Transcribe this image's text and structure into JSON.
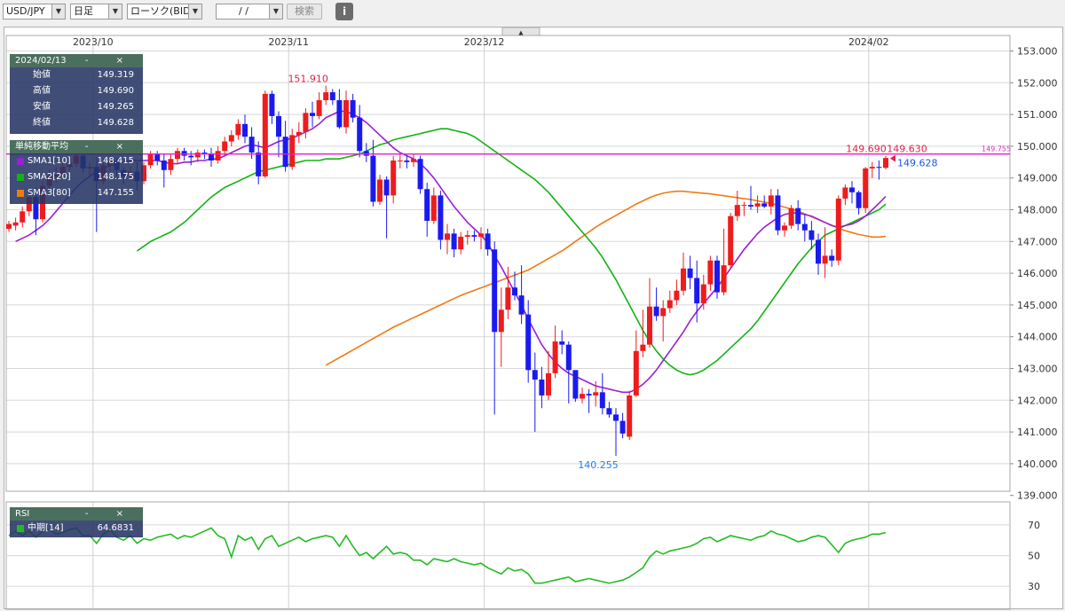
{
  "toolbar": {
    "symbol": "USD/JPY",
    "timeframe": "日足",
    "chart_type": "ローソク(BID)",
    "date_value": "/ /",
    "search_label": "検索",
    "info_label": "i"
  },
  "collapse_arrow": "▲",
  "ohlc_panel": {
    "date": "2024/02/13",
    "controls": "- ×",
    "rows": [
      {
        "label": "始値",
        "value": "149.319"
      },
      {
        "label": "高値",
        "value": "149.690"
      },
      {
        "label": "安値",
        "value": "149.265"
      },
      {
        "label": "終値",
        "value": "149.628"
      }
    ]
  },
  "sma_panel": {
    "title": "単純移動平均",
    "controls": "- ×",
    "rows": [
      {
        "label": "SMA1[10]",
        "value": "148.415",
        "color": "#9b1fd6"
      },
      {
        "label": "SMA2[20]",
        "value": "148.175",
        "color": "#12b312"
      },
      {
        "label": "SMA3[80]",
        "value": "147.155",
        "color": "#f07a12"
      }
    ]
  },
  "rsi_panel": {
    "title": "RSI",
    "controls": "- ×",
    "rows": [
      {
        "label": "中期[14]",
        "value": "64.6831",
        "color": "#22bb22"
      }
    ]
  },
  "colors": {
    "up": "#ee1c1c",
    "down": "#1a1af0",
    "sma1": "#9b1fd6",
    "sma2": "#12b312",
    "sma3": "#f07a12",
    "rsi": "#22bb22",
    "price_line": "#e61ec8",
    "grid": "#d8d8d8"
  },
  "chart_data": {
    "type": "candlestick",
    "xlabels": [
      {
        "label": "2023/10",
        "index": 13
      },
      {
        "label": "2023/11",
        "index": 42
      },
      {
        "label": "2023/12",
        "index": 71
      },
      {
        "label": "2024/02",
        "index": 128
      }
    ],
    "ylim": [
      139.5,
      153.0
    ],
    "yticks": [
      "153.000",
      "152.000",
      "151.000",
      "150.000",
      "149.000",
      "148.000",
      "147.000",
      "146.000",
      "145.000",
      "144.000",
      "143.000",
      "142.000",
      "141.000",
      "140.000",
      "139.000"
    ],
    "candles": [
      [
        147.4,
        147.65,
        147.3,
        147.55
      ],
      [
        147.5,
        147.75,
        147.35,
        147.6
      ],
      [
        147.6,
        148.1,
        147.45,
        147.95
      ],
      [
        147.95,
        148.55,
        147.8,
        148.4
      ],
      [
        148.4,
        148.7,
        147.2,
        147.7
      ],
      [
        147.7,
        148.9,
        147.6,
        148.75
      ],
      [
        148.75,
        149.25,
        148.6,
        149.05
      ],
      [
        149.05,
        149.35,
        148.85,
        149.1
      ],
      [
        149.1,
        149.5,
        149.0,
        149.35
      ],
      [
        149.35,
        149.6,
        149.2,
        149.45
      ],
      [
        149.45,
        149.85,
        149.35,
        149.7
      ],
      [
        149.7,
        149.8,
        149.15,
        149.3
      ],
      [
        149.3,
        149.5,
        149.05,
        149.35
      ],
      [
        149.35,
        149.65,
        147.3,
        148.9
      ],
      [
        148.9,
        149.6,
        148.8,
        149.4
      ],
      [
        149.4,
        149.75,
        149.2,
        149.55
      ],
      [
        149.55,
        149.65,
        149.05,
        149.25
      ],
      [
        149.25,
        149.35,
        148.8,
        149.05
      ],
      [
        149.05,
        149.35,
        148.9,
        149.2
      ],
      [
        149.2,
        149.5,
        148.6,
        148.9
      ],
      [
        148.9,
        149.5,
        148.8,
        149.4
      ],
      [
        149.4,
        149.85,
        149.3,
        149.75
      ],
      [
        149.75,
        149.85,
        149.4,
        149.55
      ],
      [
        149.55,
        149.75,
        148.7,
        149.25
      ],
      [
        149.25,
        149.75,
        149.1,
        149.6
      ],
      [
        149.6,
        149.95,
        149.45,
        149.85
      ],
      [
        149.85,
        149.95,
        149.55,
        149.7
      ],
      [
        149.7,
        149.85,
        149.4,
        149.65
      ],
      [
        149.65,
        149.9,
        149.5,
        149.8
      ],
      [
        149.8,
        149.9,
        149.6,
        149.75
      ],
      [
        149.75,
        149.95,
        149.35,
        149.55
      ],
      [
        149.55,
        150.0,
        149.45,
        149.85
      ],
      [
        149.85,
        150.3,
        149.7,
        150.15
      ],
      [
        150.15,
        150.5,
        150.0,
        150.35
      ],
      [
        150.35,
        150.85,
        150.2,
        150.7
      ],
      [
        150.7,
        151.0,
        150.1,
        150.3
      ],
      [
        150.3,
        150.6,
        149.6,
        149.8
      ],
      [
        149.8,
        150.15,
        148.8,
        149.05
      ],
      [
        149.05,
        151.75,
        149.0,
        151.65
      ],
      [
        151.65,
        151.75,
        150.7,
        150.95
      ],
      [
        150.95,
        151.1,
        149.65,
        150.3
      ],
      [
        150.3,
        150.8,
        149.2,
        149.35
      ],
      [
        149.35,
        150.55,
        149.25,
        150.35
      ],
      [
        150.35,
        150.75,
        150.1,
        150.45
      ],
      [
        150.45,
        151.2,
        150.25,
        151.05
      ],
      [
        151.05,
        151.4,
        150.6,
        150.95
      ],
      [
        150.95,
        151.7,
        150.85,
        151.45
      ],
      [
        151.45,
        151.91,
        151.3,
        151.7
      ],
      [
        151.7,
        151.8,
        151.3,
        151.45
      ],
      [
        151.45,
        151.8,
        150.55,
        150.6
      ],
      [
        150.6,
        151.75,
        150.4,
        151.45
      ],
      [
        151.45,
        151.65,
        150.75,
        150.9
      ],
      [
        150.9,
        151.3,
        149.65,
        149.85
      ],
      [
        149.85,
        150.1,
        149.5,
        149.7
      ],
      [
        149.7,
        150.2,
        148.1,
        148.25
      ],
      [
        148.25,
        149.1,
        148.15,
        148.95
      ],
      [
        148.95,
        149.05,
        147.1,
        148.45
      ],
      [
        148.45,
        149.7,
        148.2,
        149.55
      ],
      [
        149.55,
        149.75,
        149.3,
        149.55
      ],
      [
        149.55,
        149.7,
        149.3,
        149.5
      ],
      [
        149.5,
        149.75,
        149.35,
        149.6
      ],
      [
        149.6,
        149.7,
        148.5,
        148.65
      ],
      [
        148.65,
        148.85,
        147.15,
        147.65
      ],
      [
        147.65,
        148.7,
        147.55,
        148.45
      ],
      [
        148.45,
        148.6,
        146.75,
        147.05
      ],
      [
        147.05,
        147.55,
        146.6,
        147.25
      ],
      [
        147.25,
        147.4,
        146.5,
        146.75
      ],
      [
        146.75,
        147.3,
        146.6,
        147.15
      ],
      [
        147.15,
        147.35,
        146.9,
        147.2
      ],
      [
        147.2,
        147.35,
        147.0,
        147.15
      ],
      [
        147.15,
        147.45,
        146.75,
        147.25
      ],
      [
        147.25,
        147.4,
        146.55,
        146.75
      ],
      [
        146.75,
        147.0,
        141.55,
        144.15
      ],
      [
        144.15,
        145.55,
        143.05,
        144.85
      ],
      [
        144.85,
        146.2,
        144.55,
        145.55
      ],
      [
        145.55,
        146.05,
        145.15,
        145.3
      ],
      [
        145.3,
        146.25,
        144.4,
        144.7
      ],
      [
        144.7,
        145.15,
        142.55,
        142.95
      ],
      [
        142.95,
        143.5,
        141.0,
        142.65
      ],
      [
        142.65,
        143.05,
        141.75,
        142.15
      ],
      [
        142.15,
        143.55,
        142.0,
        142.85
      ],
      [
        142.85,
        144.35,
        142.7,
        143.85
      ],
      [
        143.85,
        144.2,
        143.45,
        143.75
      ],
      [
        143.75,
        143.85,
        141.9,
        142.95
      ],
      [
        142.95,
        142.9,
        141.95,
        142.05
      ],
      [
        142.05,
        142.4,
        141.9,
        142.2
      ],
      [
        142.2,
        142.35,
        141.6,
        142.15
      ],
      [
        142.15,
        142.6,
        141.8,
        142.25
      ],
      [
        142.25,
        142.85,
        141.55,
        141.75
      ],
      [
        141.75,
        141.95,
        141.45,
        141.55
      ],
      [
        141.55,
        141.75,
        140.25,
        141.35
      ],
      [
        141.35,
        141.6,
        140.8,
        140.95
      ],
      [
        140.85,
        142.3,
        140.75,
        142.15
      ],
      [
        142.15,
        144.2,
        142.1,
        143.55
      ],
      [
        143.55,
        144.85,
        143.35,
        143.75
      ],
      [
        143.75,
        145.85,
        143.65,
        144.95
      ],
      [
        144.95,
        145.55,
        144.5,
        144.65
      ],
      [
        144.65,
        145.15,
        143.85,
        144.9
      ],
      [
        144.9,
        145.45,
        144.75,
        145.15
      ],
      [
        145.15,
        145.8,
        145.0,
        145.45
      ],
      [
        145.45,
        146.65,
        145.3,
        146.15
      ],
      [
        146.15,
        146.55,
        145.5,
        145.85
      ],
      [
        145.85,
        146.4,
        144.45,
        145.05
      ],
      [
        145.05,
        145.95,
        144.85,
        145.65
      ],
      [
        145.65,
        146.55,
        145.45,
        146.4
      ],
      [
        146.4,
        146.55,
        145.2,
        145.4
      ],
      [
        145.4,
        147.4,
        145.3,
        146.25
      ],
      [
        146.25,
        147.9,
        146.15,
        147.8
      ],
      [
        147.8,
        148.6,
        147.65,
        148.15
      ],
      [
        148.15,
        148.25,
        147.8,
        148.15
      ],
      [
        148.15,
        148.75,
        148.0,
        148.1
      ],
      [
        148.1,
        148.45,
        147.9,
        148.2
      ],
      [
        148.2,
        148.45,
        148.05,
        148.1
      ],
      [
        148.1,
        148.65,
        147.85,
        148.45
      ],
      [
        148.45,
        148.65,
        147.2,
        147.35
      ],
      [
        147.35,
        147.6,
        147.15,
        147.5
      ],
      [
        147.5,
        148.15,
        147.4,
        148.05
      ],
      [
        148.05,
        148.3,
        147.35,
        147.55
      ],
      [
        147.55,
        147.85,
        147.0,
        147.35
      ],
      [
        147.35,
        147.65,
        146.75,
        147.05
      ],
      [
        147.05,
        147.25,
        145.95,
        146.3
      ],
      [
        146.3,
        147.45,
        145.85,
        146.55
      ],
      [
        146.55,
        146.75,
        146.2,
        146.4
      ],
      [
        146.4,
        148.45,
        146.25,
        148.35
      ],
      [
        148.35,
        148.8,
        148.15,
        148.7
      ],
      [
        148.7,
        148.9,
        148.2,
        148.55
      ],
      [
        148.55,
        148.6,
        147.85,
        148.05
      ],
      [
        148.05,
        149.35,
        147.9,
        149.3
      ],
      [
        149.3,
        149.5,
        149.0,
        149.35
      ],
      [
        149.35,
        149.55,
        148.95,
        149.32
      ],
      [
        149.32,
        149.69,
        149.27,
        149.63
      ]
    ],
    "sma1": [
      147.0,
      147.1,
      147.2,
      147.35,
      147.5,
      147.7,
      147.95,
      148.2,
      148.45,
      148.7,
      148.9,
      149.05,
      149.2,
      149.3,
      149.4,
      149.45,
      149.5,
      149.55,
      149.55,
      149.55,
      149.55,
      149.55,
      149.5,
      149.45,
      149.45,
      149.5,
      149.5,
      149.55,
      149.55,
      149.6,
      149.6,
      149.7,
      149.8,
      149.9,
      150.0,
      150.05,
      150.0,
      149.95,
      150.05,
      150.15,
      150.2,
      150.25,
      150.35,
      150.45,
      150.55,
      150.7,
      150.9,
      151.0,
      151.1,
      151.1,
      151.0,
      150.9,
      150.75,
      150.55,
      150.35,
      150.15,
      149.95,
      149.8,
      149.7,
      149.6,
      149.45,
      149.25,
      149.0,
      148.7,
      148.4,
      148.1,
      147.85,
      147.6,
      147.4,
      147.2,
      146.95,
      146.55,
      146.2,
      145.8,
      145.4,
      145.0,
      144.55,
      144.15,
      143.75,
      143.45,
      143.2,
      143.0,
      142.85,
      142.75,
      142.65,
      142.55,
      142.45,
      142.4,
      142.35,
      142.3,
      142.25,
      142.25,
      142.35,
      142.5,
      142.7,
      142.95,
      143.25,
      143.55,
      143.85,
      144.15,
      144.5,
      144.8,
      145.05,
      145.3,
      145.55,
      145.85,
      146.15,
      146.45,
      146.75,
      147.0,
      147.25,
      147.45,
      147.6,
      147.75,
      147.85,
      147.9,
      147.9,
      147.85,
      147.8,
      147.7,
      147.6,
      147.5,
      147.45,
      147.5,
      147.55,
      147.65,
      147.8,
      148.0,
      148.2,
      148.42
    ],
    "sma2": [
      146.7,
      146.85,
      147.0,
      147.1,
      147.2,
      147.3,
      147.45,
      147.6,
      147.8,
      148.0,
      148.2,
      148.4,
      148.55,
      148.7,
      148.8,
      148.9,
      149.0,
      149.1,
      149.2,
      149.25,
      149.3,
      149.35,
      149.4,
      149.45,
      149.5,
      149.55,
      149.55,
      149.55,
      149.6,
      149.6,
      149.6,
      149.65,
      149.7,
      149.75,
      149.85,
      149.95,
      150.05,
      150.1,
      150.2,
      150.25,
      150.3,
      150.35,
      150.4,
      150.45,
      150.5,
      150.55,
      150.55,
      150.5,
      150.45,
      150.4,
      150.3,
      150.15,
      150.0,
      149.85,
      149.7,
      149.55,
      149.4,
      149.25,
      149.1,
      148.95,
      148.75,
      148.55,
      148.3,
      148.05,
      147.8,
      147.55,
      147.3,
      147.05,
      146.8,
      146.5,
      146.15,
      145.8,
      145.4,
      145.0,
      144.6,
      144.2,
      143.85,
      143.55,
      143.3,
      143.1,
      142.95,
      142.85,
      142.8,
      142.85,
      142.95,
      143.1,
      143.25,
      143.45,
      143.65,
      143.85,
      144.05,
      144.25,
      144.5,
      144.8,
      145.1,
      145.4,
      145.7,
      146.0,
      146.3,
      146.55,
      146.8,
      147.0,
      147.2,
      147.3,
      147.4,
      147.5,
      147.6,
      147.7,
      147.8,
      147.9,
      148.0,
      148.18
    ],
    "sma3": [
      143.1,
      143.22,
      143.34,
      143.46,
      143.58,
      143.7,
      143.82,
      143.94,
      144.06,
      144.18,
      144.3,
      144.4,
      144.5,
      144.6,
      144.7,
      144.8,
      144.9,
      145.0,
      145.1,
      145.2,
      145.3,
      145.38,
      145.46,
      145.54,
      145.62,
      145.7,
      145.78,
      145.86,
      145.94,
      146.02,
      146.1,
      146.22,
      146.34,
      146.46,
      146.58,
      146.7,
      146.85,
      147.0,
      147.15,
      147.3,
      147.45,
      147.58,
      147.7,
      147.82,
      147.94,
      148.06,
      148.18,
      148.28,
      148.38,
      148.46,
      148.52,
      148.56,
      148.58,
      148.58,
      148.56,
      148.54,
      148.52,
      148.5,
      148.47,
      148.44,
      148.41,
      148.38,
      148.35,
      148.32,
      148.28,
      148.24,
      148.2,
      148.14,
      148.08,
      148.02,
      147.95,
      147.87,
      147.78,
      147.69,
      147.6,
      147.51,
      147.42,
      147.34,
      147.28,
      147.22,
      147.18,
      147.14,
      147.14,
      147.16
    ],
    "rsi": {
      "ylim": [
        15,
        85
      ],
      "yticks": [
        "70",
        "50",
        "30"
      ],
      "values": [
        63,
        66,
        63,
        66,
        62,
        66,
        67,
        64,
        65,
        67,
        68,
        63,
        63,
        58,
        64,
        67,
        62,
        60,
        63,
        58,
        61,
        60,
        62,
        63,
        64,
        61,
        63,
        62,
        64,
        66,
        68,
        63,
        61,
        49,
        63,
        60,
        62,
        54,
        61,
        63,
        56,
        58,
        60,
        62,
        59,
        61,
        62,
        63,
        62,
        56,
        63,
        56,
        50,
        52,
        48,
        52,
        56,
        51,
        52,
        51,
        47,
        47,
        44,
        48,
        47,
        46,
        48,
        46,
        45,
        44,
        45,
        42,
        40,
        38,
        42,
        40,
        41,
        38,
        32,
        32,
        33,
        34,
        35,
        36,
        33,
        34,
        35,
        34,
        33,
        32,
        33,
        34,
        36,
        39,
        42,
        49,
        53,
        51,
        53,
        54,
        55,
        56,
        58,
        61,
        62,
        59,
        61,
        63,
        62,
        61,
        60,
        62,
        63,
        66,
        64,
        63,
        61,
        59,
        60,
        62,
        63,
        62,
        57,
        52,
        58,
        60,
        61,
        62,
        64,
        64,
        65
      ]
    },
    "annotations": {
      "high_label": "151.910",
      "low_label": "140.255",
      "last_high": "149.690",
      "last_high2": "149.630",
      "last_close": "149.628",
      "edge_label": "149.755",
      "price_line": 149.755
    }
  }
}
